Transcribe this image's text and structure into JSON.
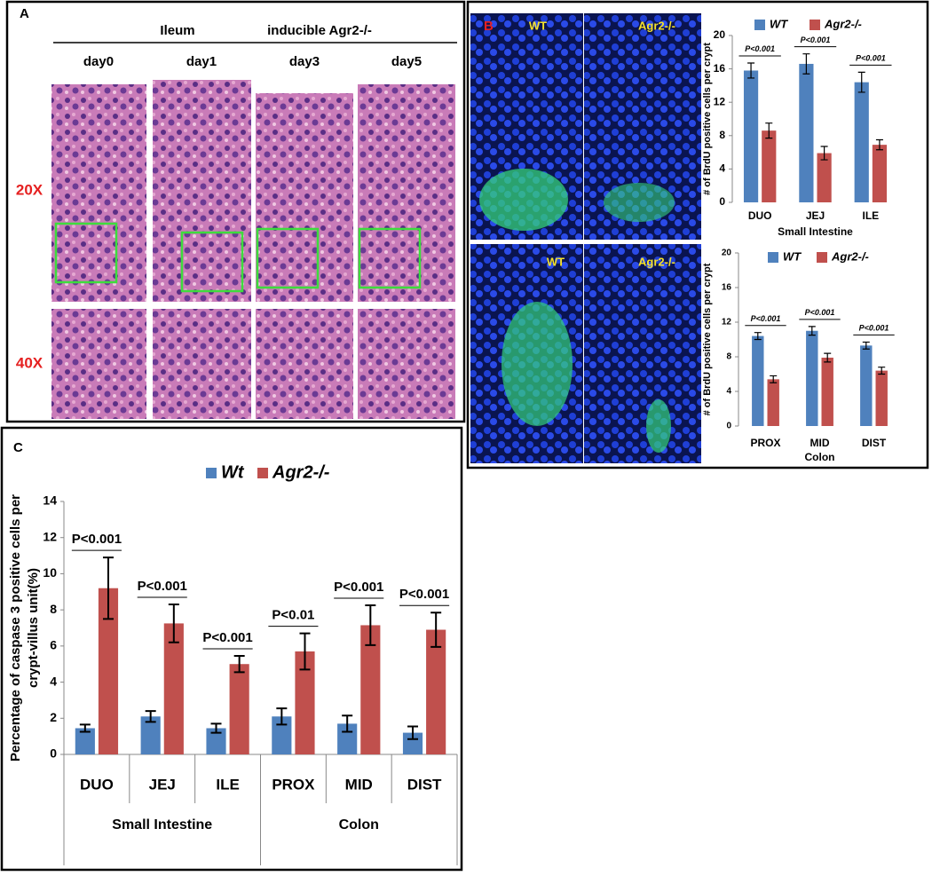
{
  "panel_a": {
    "label": "A",
    "region": "Ileum",
    "model": "inducible Agr2-/-",
    "days": [
      "day0",
      "day1",
      "day3",
      "day5"
    ],
    "magnifications": [
      "20X",
      "40X"
    ]
  },
  "panel_b": {
    "label": "B",
    "image_labels": [
      "WT",
      "Agr2-/-",
      "WT",
      "Agr2-/-"
    ]
  },
  "panel_c": {
    "label": "C"
  },
  "chart_data": [
    {
      "type": "bar",
      "y_label": [
        "# of BrdU positive cells per crypt"
      ],
      "categories": [
        "DUO",
        "JEJ",
        "ILE"
      ],
      "x_label": "Small Intestine",
      "series": [
        {
          "name": "WT",
          "color": "#4f81bd",
          "values": [
            15.8,
            16.6,
            14.4
          ],
          "errors": [
            0.9,
            1.2,
            1.2
          ]
        },
        {
          "name": "Agr2-/-",
          "color": "#c0504d",
          "values": [
            8.6,
            5.9,
            6.9
          ],
          "errors": [
            0.9,
            0.8,
            0.6
          ]
        }
      ],
      "annotations": [
        "P<0.001",
        "P<0.001",
        "P<0.001"
      ],
      "ylim": [
        0,
        20
      ],
      "yticks": [
        0,
        4,
        8,
        12,
        16,
        20
      ],
      "legend": "top"
    },
    {
      "type": "bar",
      "y_label": [
        "# of BrdU positive cells per crypt"
      ],
      "categories": [
        "PROX",
        "MID",
        "DIST"
      ],
      "x_label": "Colon",
      "series": [
        {
          "name": "WT",
          "color": "#4f81bd",
          "values": [
            10.4,
            11.0,
            9.3
          ],
          "errors": [
            0.4,
            0.5,
            0.4
          ]
        },
        {
          "name": "Agr2-/-",
          "color": "#c0504d",
          "values": [
            5.4,
            7.9,
            6.4
          ],
          "errors": [
            0.4,
            0.5,
            0.4
          ]
        }
      ],
      "annotations": [
        "P<0.001",
        "P<0.001",
        "P<0.001"
      ],
      "ylim": [
        0,
        20
      ],
      "yticks": [
        0,
        4,
        8,
        12,
        16,
        20
      ],
      "legend": "top"
    },
    {
      "type": "bar",
      "y_label": [
        "Percentage of caspase 3 positive cells per",
        "crypt-villus unit(%)"
      ],
      "categories": [
        "DUO",
        "JEJ",
        "ILE",
        "PROX",
        "MID",
        "DIST"
      ],
      "group_labels": [
        "Small Intestine",
        "Colon"
      ],
      "series": [
        {
          "name": "Wt",
          "color": "#4f81bd",
          "values": [
            1.45,
            2.1,
            1.45,
            2.1,
            1.7,
            1.2
          ],
          "errors": [
            0.2,
            0.3,
            0.25,
            0.45,
            0.45,
            0.35
          ]
        },
        {
          "name": "Agr2-/-",
          "color": "#c0504d",
          "values": [
            9.2,
            7.25,
            5.0,
            5.7,
            7.15,
            6.9
          ],
          "errors": [
            1.7,
            1.05,
            0.45,
            1.0,
            1.1,
            0.95
          ]
        }
      ],
      "annotations": [
        "P<0.001",
        "P<0.001",
        "P<0.001",
        "P<0.01",
        "P<0.001",
        "P<0.001"
      ],
      "ylim": [
        0,
        14
      ],
      "yticks": [
        0,
        2,
        4,
        6,
        8,
        10,
        12,
        14
      ],
      "legend": "top"
    }
  ]
}
